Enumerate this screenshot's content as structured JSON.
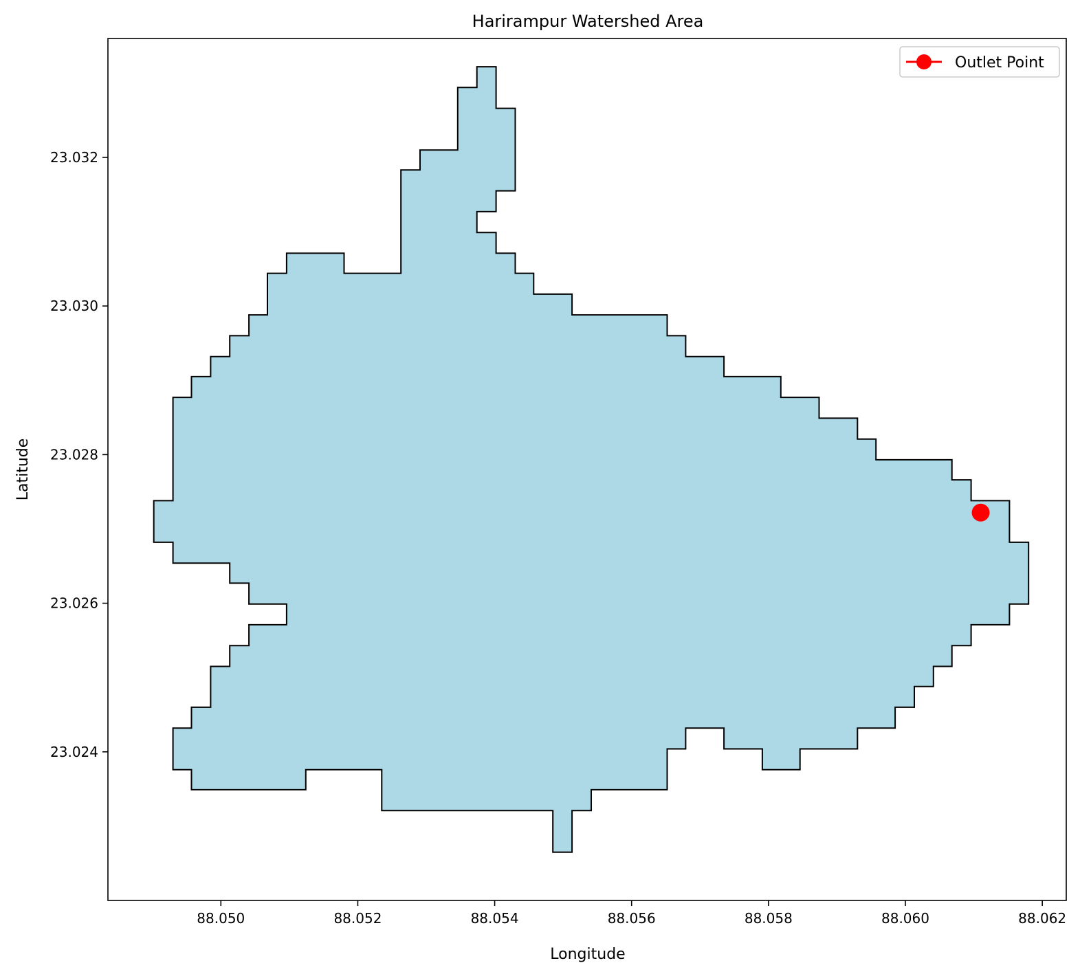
{
  "chart_data": {
    "type": "area",
    "title": "Harirampur Watershed Area",
    "xlabel": "Longitude",
    "ylabel": "Latitude",
    "xlim": [
      88.04835,
      88.06235
    ],
    "ylim": [
      23.022,
      23.0336
    ],
    "xticks": [
      88.05,
      88.052,
      88.054,
      88.056,
      88.058,
      88.06,
      88.062
    ],
    "xtick_labels": [
      "88.050",
      "88.052",
      "88.054",
      "88.056",
      "88.058",
      "88.060",
      "88.062"
    ],
    "yticks": [
      23.024,
      23.026,
      23.028,
      23.03,
      23.032
    ],
    "ytick_labels": [
      "23.024",
      "23.026",
      "23.028",
      "23.030",
      "23.032"
    ],
    "grid": false,
    "legend": {
      "position": "top-right",
      "entries": [
        "Outlet Point"
      ]
    },
    "colors": {
      "fill": "#add8e6",
      "edge": "#000000",
      "outlet": "#ff0000"
    },
    "watershed_boundary": [
      [
        88.05374,
        23.03322
      ],
      [
        88.05402,
        23.03322
      ],
      [
        88.05402,
        23.03266
      ],
      [
        88.0543,
        23.03266
      ],
      [
        88.0543,
        23.03155
      ],
      [
        88.05402,
        23.03155
      ],
      [
        88.05402,
        23.03127
      ],
      [
        88.05374,
        23.03127
      ],
      [
        88.05374,
        23.03099
      ],
      [
        88.05402,
        23.03099
      ],
      [
        88.05402,
        23.03071
      ],
      [
        88.0543,
        23.03071
      ],
      [
        88.0543,
        23.03044
      ],
      [
        88.05457,
        23.03044
      ],
      [
        88.05457,
        23.03016
      ],
      [
        88.05513,
        23.03016
      ],
      [
        88.05513,
        23.02988
      ],
      [
        88.05652,
        23.02988
      ],
      [
        88.05652,
        23.0296
      ],
      [
        88.05679,
        23.0296
      ],
      [
        88.05679,
        23.02932
      ],
      [
        88.05735,
        23.02932
      ],
      [
        88.05735,
        23.02905
      ],
      [
        88.05818,
        23.02905
      ],
      [
        88.05818,
        23.02877
      ],
      [
        88.05874,
        23.02877
      ],
      [
        88.05874,
        23.02849
      ],
      [
        88.0593,
        23.02849
      ],
      [
        88.0593,
        23.02821
      ],
      [
        88.05957,
        23.02821
      ],
      [
        88.05957,
        23.02793
      ],
      [
        88.06068,
        23.02793
      ],
      [
        88.06068,
        23.02766
      ],
      [
        88.06096,
        23.02766
      ],
      [
        88.06096,
        23.02738
      ],
      [
        88.06152,
        23.02738
      ],
      [
        88.06152,
        23.02682
      ],
      [
        88.0618,
        23.02682
      ],
      [
        88.0618,
        23.02599
      ],
      [
        88.06152,
        23.02599
      ],
      [
        88.06152,
        23.02571
      ],
      [
        88.06096,
        23.02571
      ],
      [
        88.06096,
        23.02543
      ],
      [
        88.06068,
        23.02543
      ],
      [
        88.06068,
        23.02515
      ],
      [
        88.06041,
        23.02515
      ],
      [
        88.06041,
        23.02488
      ],
      [
        88.06013,
        23.02488
      ],
      [
        88.06013,
        23.0246
      ],
      [
        88.05985,
        23.0246
      ],
      [
        88.05985,
        23.02432
      ],
      [
        88.0593,
        23.02432
      ],
      [
        88.0593,
        23.02404
      ],
      [
        88.05846,
        23.02404
      ],
      [
        88.05846,
        23.02376
      ],
      [
        88.05791,
        23.02376
      ],
      [
        88.05791,
        23.02404
      ],
      [
        88.05735,
        23.02404
      ],
      [
        88.05735,
        23.02432
      ],
      [
        88.05679,
        23.02432
      ],
      [
        88.05679,
        23.02404
      ],
      [
        88.05652,
        23.02404
      ],
      [
        88.05652,
        23.02349
      ],
      [
        88.05541,
        23.02349
      ],
      [
        88.05541,
        23.02321
      ],
      [
        88.05513,
        23.02321
      ],
      [
        88.05513,
        23.02265
      ],
      [
        88.05485,
        23.02265
      ],
      [
        88.05485,
        23.02321
      ],
      [
        88.05235,
        23.02321
      ],
      [
        88.05235,
        23.02376
      ],
      [
        88.05124,
        23.02376
      ],
      [
        88.05124,
        23.02349
      ],
      [
        88.04957,
        23.02349
      ],
      [
        88.04957,
        23.02376
      ],
      [
        88.0493,
        23.02376
      ],
      [
        88.0493,
        23.02432
      ],
      [
        88.04957,
        23.02432
      ],
      [
        88.04957,
        23.0246
      ],
      [
        88.04985,
        23.0246
      ],
      [
        88.04985,
        23.02515
      ],
      [
        88.05013,
        23.02515
      ],
      [
        88.05013,
        23.02543
      ],
      [
        88.05041,
        23.02543
      ],
      [
        88.05041,
        23.02571
      ],
      [
        88.05096,
        23.02571
      ],
      [
        88.05096,
        23.02599
      ],
      [
        88.05041,
        23.02599
      ],
      [
        88.05041,
        23.02627
      ],
      [
        88.05013,
        23.02627
      ],
      [
        88.05013,
        23.02654
      ],
      [
        88.0493,
        23.02654
      ],
      [
        88.0493,
        23.02682
      ],
      [
        88.04902,
        23.02682
      ],
      [
        88.04902,
        23.02738
      ],
      [
        88.0493,
        23.02738
      ],
      [
        88.0493,
        23.02877
      ],
      [
        88.04957,
        23.02877
      ],
      [
        88.04957,
        23.02905
      ],
      [
        88.04985,
        23.02905
      ],
      [
        88.04985,
        23.02932
      ],
      [
        88.05013,
        23.02932
      ],
      [
        88.05013,
        23.0296
      ],
      [
        88.05041,
        23.0296
      ],
      [
        88.05041,
        23.02988
      ],
      [
        88.05068,
        23.02988
      ],
      [
        88.05068,
        23.03044
      ],
      [
        88.05096,
        23.03044
      ],
      [
        88.05096,
        23.03071
      ],
      [
        88.0518,
        23.03071
      ],
      [
        88.0518,
        23.03044
      ],
      [
        88.05263,
        23.03044
      ],
      [
        88.05263,
        23.03183
      ],
      [
        88.05291,
        23.03183
      ],
      [
        88.05291,
        23.0321
      ],
      [
        88.05346,
        23.0321
      ],
      [
        88.05346,
        23.03294
      ],
      [
        88.05374,
        23.03294
      ]
    ],
    "outlet_point": {
      "label": "Outlet Point",
      "x": 88.0611,
      "y": 23.02722
    }
  }
}
